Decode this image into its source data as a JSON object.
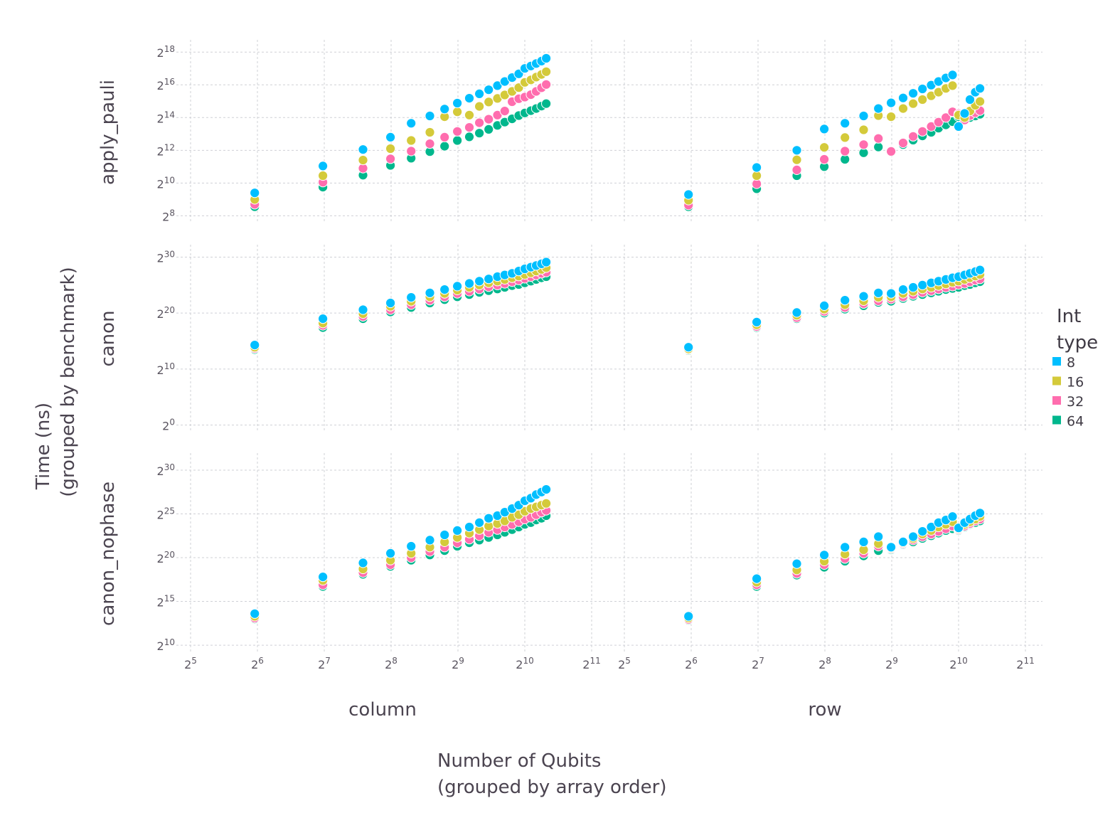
{
  "chart_data": {
    "type": "scatter",
    "title": "",
    "xlabel": [
      "Number of Qubits",
      "(grouped by array order)"
    ],
    "ylabel": [
      "Time (ns)",
      "(grouped by benchmark)"
    ],
    "x_scale": "log2",
    "y_scale": "log2",
    "x_ticks_exp": [
      5,
      6,
      7,
      8,
      9,
      10,
      11
    ],
    "xlim_exp": [
      5,
      11
    ],
    "grid": true,
    "legend": {
      "title": [
        "Int",
        "type"
      ],
      "position": "right",
      "entries": [
        {
          "label": "8",
          "color": "#00bfff"
        },
        {
          "label": "16",
          "color": "#d4ca3a"
        },
        {
          "label": "32",
          "color": "#ff6dae"
        },
        {
          "label": "64",
          "color": "#00b78d"
        }
      ]
    },
    "columns": [
      "column",
      "row"
    ],
    "rows": [
      {
        "name": "apply_pauli",
        "y_ticks_exp": [
          8,
          10,
          12,
          14,
          16,
          18
        ],
        "ylim_exp": [
          7.8,
          18.4
        ]
      },
      {
        "name": "canon",
        "y_ticks_exp": [
          0,
          10,
          20,
          30
        ],
        "ylim_exp": [
          -0.3,
          31.2
        ]
      },
      {
        "name": "canon_nophase",
        "y_ticks_exp": [
          10,
          15,
          20,
          25,
          30
        ],
        "ylim_exp": [
          9.6,
          31.3
        ]
      }
    ],
    "x_log2": [
      5.96,
      6.98,
      7.58,
      7.99,
      8.3,
      8.58,
      8.8,
      8.99,
      9.17,
      9.32,
      9.46,
      9.59,
      9.7,
      9.81,
      9.91,
      10.0,
      10.09,
      10.17,
      10.25,
      10.32
    ],
    "series_log2": {
      "apply_pauli": {
        "column": {
          "8": [
            9.4,
            11.04,
            12.05,
            12.8,
            13.65,
            14.1,
            14.52,
            14.88,
            15.18,
            15.45,
            15.7,
            15.95,
            16.2,
            16.44,
            16.67,
            17.0,
            17.15,
            17.3,
            17.45,
            17.62
          ],
          "16": [
            9.0,
            10.45,
            11.4,
            12.1,
            12.6,
            13.1,
            14.05,
            14.35,
            14.15,
            14.68,
            14.95,
            15.17,
            15.38,
            15.6,
            15.83,
            16.15,
            16.3,
            16.47,
            16.63,
            16.8
          ],
          "32": [
            8.7,
            10.05,
            10.9,
            11.48,
            11.95,
            12.4,
            12.8,
            13.15,
            13.4,
            13.68,
            13.9,
            14.15,
            14.4,
            14.97,
            15.15,
            15.25,
            15.4,
            15.6,
            15.82,
            16.02
          ],
          "64": [
            8.55,
            9.75,
            10.48,
            11.08,
            11.52,
            11.92,
            12.25,
            12.6,
            12.82,
            13.05,
            13.28,
            13.52,
            13.72,
            13.92,
            14.12,
            14.28,
            14.42,
            14.55,
            14.7,
            14.85
          ]
        },
        "row": {
          "8": [
            9.3,
            10.95,
            12.0,
            13.3,
            13.65,
            14.1,
            14.55,
            14.9,
            15.2,
            15.48,
            15.75,
            15.98,
            16.2,
            16.42,
            16.6,
            13.45,
            14.25,
            15.1,
            15.55,
            15.78
          ],
          "16": [
            8.95,
            10.45,
            11.42,
            12.18,
            12.78,
            13.25,
            14.12,
            14.05,
            14.55,
            14.85,
            15.1,
            15.33,
            15.55,
            15.78,
            15.95,
            14.15,
            14.0,
            14.4,
            14.75,
            14.98
          ],
          "32": [
            8.65,
            9.95,
            10.8,
            11.45,
            11.95,
            12.35,
            12.72,
            11.93,
            12.45,
            12.85,
            13.15,
            13.45,
            13.72,
            14.0,
            14.35,
            14.22,
            13.85,
            14.12,
            14.3,
            14.42
          ],
          "64": [
            8.55,
            9.65,
            10.45,
            11.0,
            11.45,
            11.85,
            12.2,
            11.95,
            12.35,
            12.62,
            12.88,
            13.1,
            13.35,
            13.55,
            13.75,
            14.05,
            13.95,
            14.0,
            14.1,
            14.2
          ]
        }
      },
      "canon": {
        "column": {
          "8": [
            14.3,
            19.0,
            20.6,
            21.8,
            22.8,
            23.6,
            24.2,
            24.8,
            25.3,
            25.7,
            26.1,
            26.5,
            26.8,
            27.1,
            27.5,
            27.9,
            28.2,
            28.5,
            28.8,
            29.1
          ],
          "16": [
            13.9,
            18.2,
            19.9,
            21.2,
            22.1,
            22.9,
            23.5,
            24.1,
            24.6,
            25.0,
            25.4,
            25.7,
            26.0,
            26.3,
            26.6,
            26.9,
            27.2,
            27.5,
            27.8,
            28.1
          ],
          "32": [
            13.7,
            17.8,
            19.4,
            20.6,
            21.5,
            22.3,
            22.9,
            23.5,
            23.9,
            24.3,
            24.7,
            25.0,
            25.3,
            25.6,
            25.9,
            26.2,
            26.5,
            26.8,
            27.1,
            27.3
          ],
          "64": [
            13.5,
            17.4,
            19.0,
            20.2,
            21.0,
            21.8,
            22.4,
            22.9,
            23.3,
            23.7,
            24.0,
            24.3,
            24.6,
            24.9,
            25.1,
            25.4,
            25.7,
            26.0,
            26.3,
            26.5
          ]
        },
        "row": {
          "8": [
            13.9,
            18.4,
            20.1,
            21.3,
            22.3,
            23.0,
            23.6,
            23.5,
            24.2,
            24.6,
            25.0,
            25.4,
            25.7,
            26.0,
            26.3,
            26.5,
            26.8,
            27.1,
            27.4,
            27.7
          ],
          "16": [
            13.6,
            17.9,
            19.6,
            20.7,
            21.5,
            22.2,
            22.8,
            22.9,
            23.5,
            23.9,
            24.3,
            24.6,
            24.9,
            25.2,
            25.5,
            25.7,
            26.0,
            26.3,
            26.6,
            26.9
          ],
          "32": [
            13.45,
            17.6,
            19.2,
            20.3,
            21.0,
            21.7,
            22.2,
            22.5,
            22.9,
            23.3,
            23.7,
            24.0,
            24.3,
            24.6,
            24.8,
            25.1,
            25.3,
            25.6,
            25.9,
            26.1
          ],
          "64": [
            13.3,
            17.4,
            19.0,
            20.0,
            20.7,
            21.3,
            21.9,
            22.1,
            22.6,
            23.0,
            23.3,
            23.6,
            23.9,
            24.2,
            24.4,
            24.6,
            24.9,
            25.1,
            25.4,
            25.6
          ]
        }
      },
      "canon_nophase": {
        "column": {
          "8": [
            13.6,
            17.8,
            19.4,
            20.5,
            21.3,
            22.0,
            22.6,
            23.1,
            23.5,
            24.0,
            24.5,
            24.8,
            25.2,
            25.6,
            26.0,
            26.5,
            26.8,
            27.2,
            27.5,
            27.8
          ],
          "16": [
            13.3,
            17.4,
            18.7,
            19.7,
            20.5,
            21.2,
            21.8,
            22.3,
            22.8,
            23.2,
            23.6,
            23.9,
            24.2,
            24.6,
            24.9,
            25.3,
            25.6,
            25.8,
            26.0,
            26.2
          ],
          "32": [
            13.1,
            16.9,
            18.3,
            19.2,
            20.0,
            20.7,
            21.2,
            21.7,
            22.1,
            22.5,
            22.9,
            23.2,
            23.5,
            23.8,
            24.1,
            24.4,
            24.6,
            24.9,
            25.2,
            25.4
          ],
          "64": [
            13.0,
            16.7,
            18.1,
            19.0,
            19.7,
            20.3,
            20.8,
            21.3,
            21.7,
            22.0,
            22.3,
            22.6,
            22.9,
            23.2,
            23.5,
            23.8,
            24.0,
            24.3,
            24.5,
            24.8
          ]
        },
        "row": {
          "8": [
            13.3,
            17.6,
            19.3,
            20.3,
            21.2,
            21.8,
            22.4,
            21.2,
            21.8,
            22.4,
            23.0,
            23.5,
            24.0,
            24.3,
            24.7,
            23.4,
            24.0,
            24.4,
            24.8,
            25.1
          ],
          "16": [
            13.1,
            17.2,
            18.6,
            19.6,
            20.4,
            20.9,
            21.6,
            21.1,
            21.7,
            22.2,
            22.7,
            23.1,
            23.5,
            23.8,
            24.1,
            23.3,
            23.8,
            24.1,
            24.4,
            24.7
          ],
          "32": [
            12.95,
            16.9,
            18.2,
            19.2,
            19.9,
            20.5,
            21.3,
            21.0,
            21.6,
            22.0,
            22.4,
            22.7,
            23.0,
            23.3,
            23.6,
            23.2,
            23.6,
            23.9,
            24.2,
            24.4
          ],
          "64": [
            12.85,
            16.7,
            18.0,
            18.9,
            19.6,
            20.2,
            20.8,
            20.9,
            21.5,
            21.8,
            22.2,
            22.5,
            22.8,
            23.1,
            23.3,
            23.1,
            23.5,
            23.8,
            24.0,
            24.2
          ]
        }
      }
    }
  }
}
